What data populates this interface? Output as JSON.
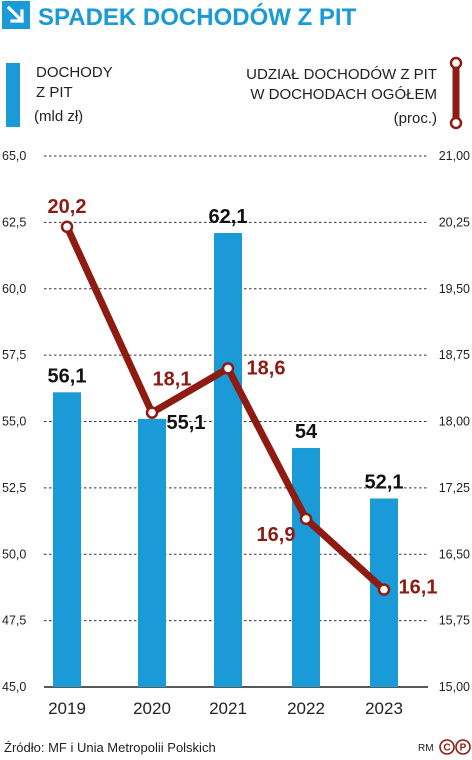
{
  "title": "SPADEK DOCHODÓW Z PIT",
  "legend": {
    "bars_line1": "DOCHODY",
    "bars_line2": "Z PIT",
    "bars_unit": "(mld zł)",
    "line_line1": "UDZIAŁ DOCHODÓW Z PIT",
    "line_line2": "W DOCHODACH OGÓŁEM",
    "line_unit": "(proc.)"
  },
  "source": "Źródło: MF i Unia Metropolii Polskich",
  "credit": {
    "initials": "RM",
    "logo_letters": [
      "C",
      "P"
    ]
  },
  "colors": {
    "bars": "#1a9ad6",
    "line": "#8e1b12",
    "title": "#1a9ad6",
    "grid": "#333333"
  },
  "chart_data": {
    "type": "bar",
    "categories": [
      "2019",
      "2020",
      "2021",
      "2022",
      "2023"
    ],
    "series": [
      {
        "name": "DOCHODY Z PIT",
        "type": "bar",
        "axis": "left",
        "values": [
          56.1,
          55.1,
          62.1,
          54,
          52.1
        ],
        "labels": [
          "56,1",
          "55,1",
          "62,1",
          "54",
          "52,1"
        ]
      },
      {
        "name": "UDZIAŁ DOCHODÓW Z PIT W DOCHODACH OGÓŁEM",
        "type": "line",
        "axis": "right",
        "values": [
          20.2,
          18.1,
          18.6,
          16.9,
          16.1
        ],
        "labels": [
          "20,2",
          "18,1",
          "18,6",
          "16,9",
          "16,1"
        ]
      }
    ],
    "left_axis": {
      "ylim": [
        45,
        65
      ],
      "ticks": [
        45,
        47.5,
        50,
        52.5,
        55,
        57.5,
        60,
        62.5,
        65
      ],
      "tick_labels": [
        "45,0",
        "47,5",
        "50,0",
        "52,5",
        "55,0",
        "57,5",
        "60,0",
        "62,5",
        "65,0"
      ]
    },
    "right_axis": {
      "ylim": [
        15,
        21
      ],
      "ticks": [
        15,
        15.75,
        16.5,
        17.25,
        18,
        18.75,
        19.5,
        20.25,
        21
      ],
      "tick_labels": [
        "15,00",
        "15,75",
        "16,50",
        "17,25",
        "18,00",
        "18,75",
        "19,50",
        "20,25",
        "21,00"
      ]
    },
    "grid": true,
    "grid_style": "dashed"
  }
}
